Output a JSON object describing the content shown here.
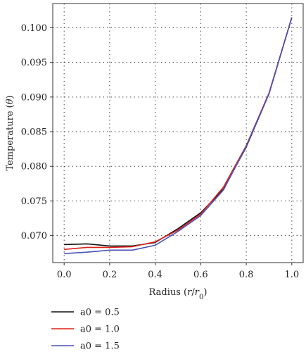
{
  "chart_data": {
    "type": "line",
    "title": "",
    "xlabel": "Radius (r/r0)",
    "ylabel": "Temperature (θ)",
    "xlim": [
      -0.05,
      1.05
    ],
    "ylim": [
      0.0661,
      0.1035
    ],
    "xticks": [
      "0.0",
      "0.2",
      "0.4",
      "0.6",
      "0.8",
      "1.0"
    ],
    "xtick_values": [
      0.0,
      0.2,
      0.4,
      0.6,
      0.8,
      1.0
    ],
    "yticks": [
      "0.070",
      "0.075",
      "0.080",
      "0.085",
      "0.090",
      "0.095",
      "0.100"
    ],
    "ytick_values": [
      0.07,
      0.075,
      0.08,
      0.085,
      0.09,
      0.095,
      0.1
    ],
    "grid": true,
    "legend_position": "below",
    "x": [
      0.0,
      0.1,
      0.2,
      0.3,
      0.4,
      0.5,
      0.6,
      0.7,
      0.8,
      0.9,
      1.0
    ],
    "series": [
      {
        "name": "a0 = 0.5",
        "color": "#111111",
        "values": [
          0.0687,
          0.0688,
          0.0685,
          0.0685,
          0.069,
          0.071,
          0.0733,
          0.0767,
          0.0828,
          0.0905,
          0.1015
        ]
      },
      {
        "name": "a0 = 1.0",
        "color": "#e0201b",
        "values": [
          0.068,
          0.0683,
          0.0683,
          0.0684,
          0.0691,
          0.0708,
          0.0731,
          0.077,
          0.083,
          0.0906,
          0.1015
        ]
      },
      {
        "name": "a0 = 1.5",
        "color": "#4a52b4",
        "values": [
          0.0674,
          0.0676,
          0.0679,
          0.0679,
          0.0686,
          0.0706,
          0.0729,
          0.0766,
          0.0829,
          0.0905,
          0.1015
        ]
      }
    ]
  }
}
